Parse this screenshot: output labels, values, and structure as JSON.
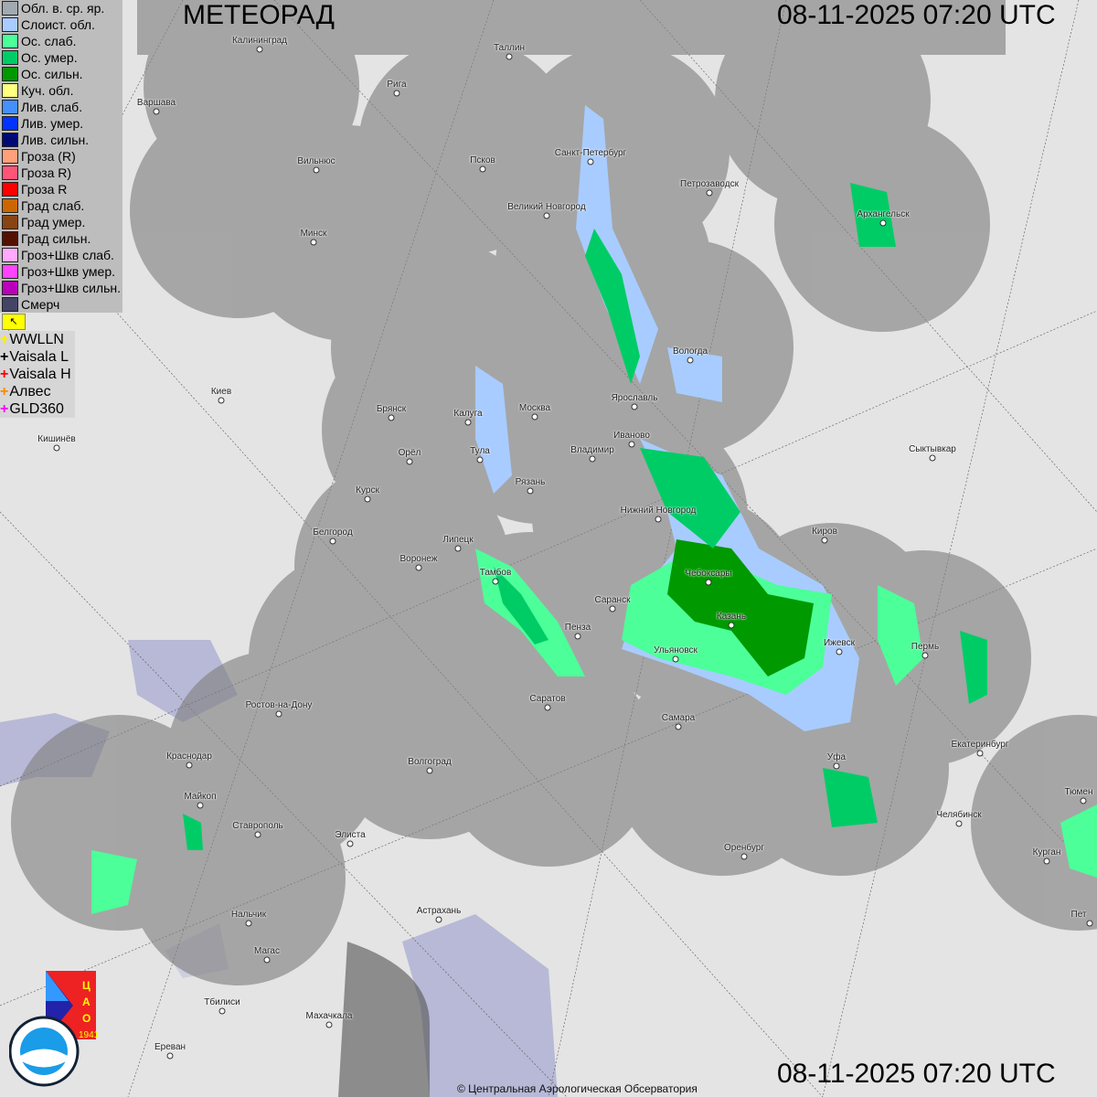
{
  "header": {
    "title": "МЕТЕОРАД",
    "datetime_top": "08-11-2025  07:20 UTC",
    "datetime_bottom": "08-11-2025  07:20 UTC"
  },
  "copyright": "© Центральная Аэрологическая Обсерватория",
  "legend": [
    {
      "label": "Обл. в. ср. яр.",
      "color": "#a0aab0"
    },
    {
      "label": "Слоист. обл.",
      "color": "#a8ccff"
    },
    {
      "label": "Ос. слаб.",
      "color": "#4cff99"
    },
    {
      "label": "Ос. умер.",
      "color": "#00cc66"
    },
    {
      "label": "Ос. сильн.",
      "color": "#009900"
    },
    {
      "label": "Куч. обл.",
      "color": "#ffff80"
    },
    {
      "label": "Лив. слаб.",
      "color": "#4490ff"
    },
    {
      "label": "Лив. умер.",
      "color": "#0033ff"
    },
    {
      "label": "Лив. сильн.",
      "color": "#000a77"
    },
    {
      "label": "Гроза (R)",
      "color": "#ffa07a"
    },
    {
      "label": "Гроза R)",
      "color": "#ff5577"
    },
    {
      "label": "Гроза R",
      "color": "#ff0000"
    },
    {
      "label": "Град слаб.",
      "color": "#cc6600"
    },
    {
      "label": "Град умер.",
      "color": "#884411"
    },
    {
      "label": "Град сильн.",
      "color": "#551100"
    },
    {
      "label": "Гроз+Шкв слаб.",
      "color": "#ffaaff"
    },
    {
      "label": "Гроз+Шкв умер.",
      "color": "#ff44ff"
    },
    {
      "label": "Гроз+Шкв сильн.",
      "color": "#bb00bb"
    },
    {
      "label": "Смерч",
      "color": "#444466"
    }
  ],
  "lightning_flag_icon": "flag-icon",
  "lightning_networks": [
    {
      "label": "WWLLN",
      "color": "#ffee00"
    },
    {
      "label": "Vaisala L",
      "color": "#000000"
    },
    {
      "label": "Vaisala H",
      "color": "#ff0000"
    },
    {
      "label": "Алвес",
      "color": "#ff8800"
    },
    {
      "label": "GLD360",
      "color": "#ff00ff"
    }
  ],
  "cities": [
    "Калининград",
    "Таллин",
    "Рига",
    "Варшава",
    "Санкт-Петербург",
    "Псков",
    "Вильнюс",
    "Петрозаводск",
    "Великий Новгород",
    "Архангельск",
    "Минск",
    "Вологда",
    "Киев",
    "Ярославль",
    "Москва",
    "Брянск",
    "Калуга",
    "Иваново",
    "Кишинёв",
    "Орёл",
    "Владимир",
    "Тула",
    "Сыктывкар",
    "Рязань",
    "Курск",
    "Нижний Новгород",
    "Белгород",
    "Киров",
    "Липецк",
    "Воронеж",
    "Тамбов",
    "Чебоксары",
    "Саранск",
    "Казань",
    "Пенза",
    "Ижевск",
    "Пермь",
    "Ульяновск",
    "Саратов",
    "Ростов-на-Дону",
    "Самара",
    "Екатеринбург",
    "Краснодар",
    "Уфа",
    "Волгоград",
    "Майкоп",
    "Челябинск",
    "Тюмен",
    "Ставрополь",
    "Элиста",
    "Оренбург",
    "Курган",
    "Астрахань",
    "Нальчик",
    "Магас",
    "Тбилиси",
    "Махачкала",
    "Ереван",
    "Пет"
  ],
  "logos": {
    "cao": "ЦАО 1941",
    "roshydromet": "РОСГИДРОМЕТ ROSHYDROMET"
  }
}
